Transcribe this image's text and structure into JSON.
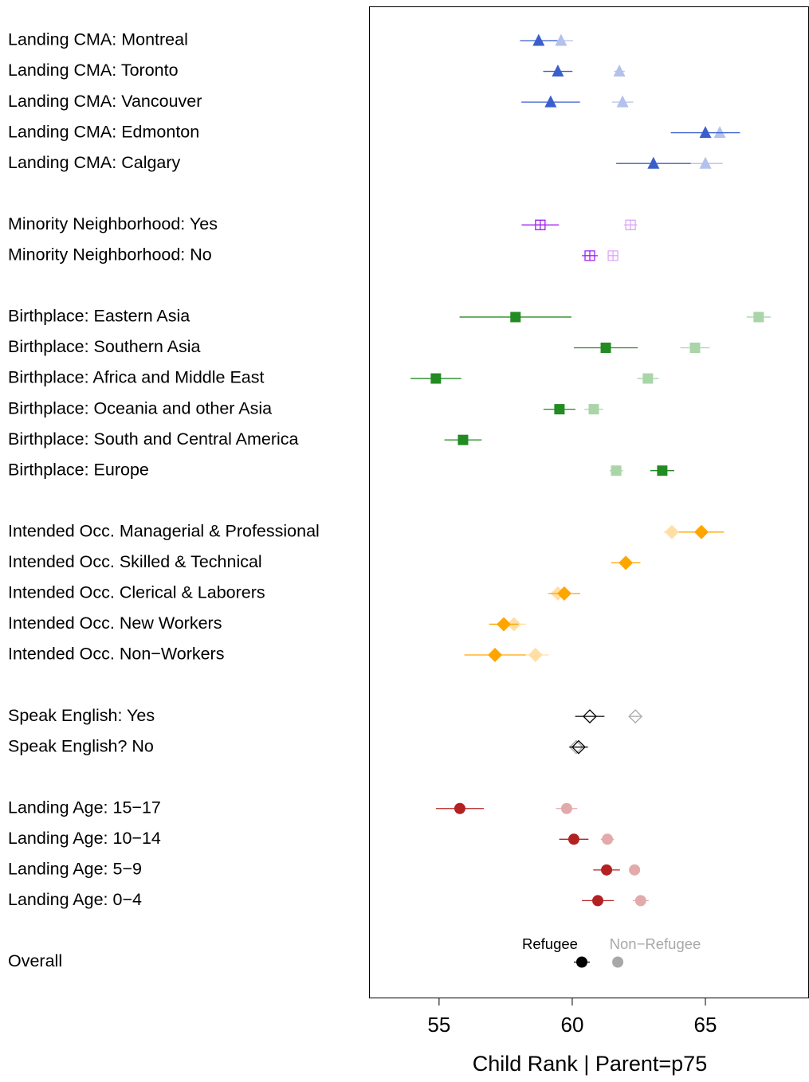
{
  "chart_data": {
    "type": "dot",
    "x_label": "Child Rank | Parent=p75",
    "xlim": [
      52.37,
      68.89
    ],
    "xticks": [
      55,
      60,
      65
    ],
    "categories": [
      "Landing CMA: Montreal",
      "Landing CMA: Toronto",
      "Landing CMA: Vancouver",
      "Landing CMA: Edmonton",
      "Landing CMA: Calgary",
      null,
      "Minority Neighborhood: Yes",
      "Minority Neighborhood: No",
      null,
      "Birthplace: Eastern Asia",
      "Birthplace: Southern Asia",
      "Birthplace: Africa and Middle East",
      "Birthplace: Oceania and other Asia",
      "Birthplace: South and Central America",
      "Birthplace: Europe",
      null,
      "Intended Occ. Managerial & Professional",
      "Intended Occ. Skilled & Technical",
      "Intended Occ. Clerical & Laborers",
      "Intended Occ. New Workers",
      "Intended Occ. Non−Workers",
      null,
      "Speak English: Yes",
      "Speak English? No",
      null,
      "Landing Age: 15−17",
      "Landing Age: 10−14",
      "Landing Age: 5−9",
      "Landing Age: 0−4",
      null,
      "Overall"
    ],
    "markers": [
      "triangle",
      "triangle",
      "triangle",
      "triangle",
      "triangle",
      null,
      "square-plus",
      "square-plus",
      null,
      "square",
      "square",
      "square",
      "square",
      "square",
      "square",
      null,
      "diamond",
      "diamond",
      "diamond",
      "diamond",
      "diamond",
      null,
      "open-diamond",
      "open-diamond",
      null,
      "circle",
      "circle",
      "circle",
      "circle",
      null,
      "circle"
    ],
    "series": [
      {
        "name": "Refugee",
        "legend_color": "#000000",
        "values": [
          58.74,
          59.46,
          59.19,
          65.0,
          63.05,
          null,
          58.8,
          60.66,
          null,
          57.87,
          61.26,
          54.88,
          59.52,
          55.9,
          63.38,
          null,
          64.85,
          62.01,
          59.7,
          57.43,
          57.1,
          null,
          60.66,
          60.24,
          null,
          55.78,
          60.06,
          61.29,
          60.96,
          null,
          60.36
        ],
        "errors": [
          0.7,
          0.55,
          1.1,
          1.3,
          1.4,
          null,
          0.7,
          0.3,
          null,
          2.1,
          1.2,
          0.95,
          0.6,
          0.7,
          0.45,
          null,
          0.85,
          0.55,
          0.6,
          0.55,
          1.15,
          null,
          0.55,
          0.35,
          null,
          0.9,
          0.55,
          0.5,
          0.6,
          null,
          0.3
        ],
        "colors": [
          "#3a5fcd",
          "#3a5fcd",
          "#3a5fcd",
          "#3a5fcd",
          "#3a5fcd",
          null,
          "#a020f0",
          "#a020f0",
          null,
          "#228b22",
          "#228b22",
          "#228b22",
          "#228b22",
          "#228b22",
          "#228b22",
          null,
          "#ffa500",
          "#ffa500",
          "#ffa500",
          "#ffa500",
          "#ffa500",
          null,
          "#000000",
          "#000000",
          null,
          "#b22222",
          "#b22222",
          "#b22222",
          "#b22222",
          null,
          "#000000"
        ]
      },
      {
        "name": "Non−Refugee",
        "legend_color": "#a8a8a8",
        "values": [
          59.58,
          61.77,
          61.89,
          65.54,
          65.0,
          null,
          62.19,
          61.53,
          null,
          67.0,
          64.61,
          62.84,
          60.81,
          null,
          61.65,
          null,
          63.74,
          null,
          59.46,
          57.81,
          58.62,
          null,
          62.37,
          60.15,
          null,
          59.79,
          61.32,
          62.34,
          62.57,
          null,
          61.71
        ],
        "errors": [
          0.45,
          0.2,
          0.4,
          0.3,
          0.65,
          null,
          0.25,
          0.2,
          null,
          0.45,
          0.55,
          0.4,
          0.35,
          null,
          0.25,
          null,
          0.3,
          null,
          0.3,
          0.45,
          0.5,
          null,
          0.2,
          0.15,
          null,
          0.4,
          0.25,
          0.2,
          0.3,
          null,
          0.15
        ],
        "colors": [
          "#b3c1ec",
          "#b3c1ec",
          "#b3c1ec",
          "#b3c1ec",
          "#b3c1ec",
          null,
          "#dca8f7",
          "#dca8f7",
          null,
          "#a9d5a9",
          "#a9d5a9",
          "#a9d5a9",
          "#a9d5a9",
          null,
          "#a9d5a9",
          null,
          "#ffdfa6",
          null,
          "#ffdfa6",
          "#ffdfa6",
          "#ffdfa6",
          null,
          "#a8a8a8",
          "#a8a8a8",
          null,
          "#e3aaaa",
          "#e3aaaa",
          "#e3aaaa",
          "#e3aaaa",
          null,
          "#a8a8a8"
        ]
      }
    ]
  }
}
